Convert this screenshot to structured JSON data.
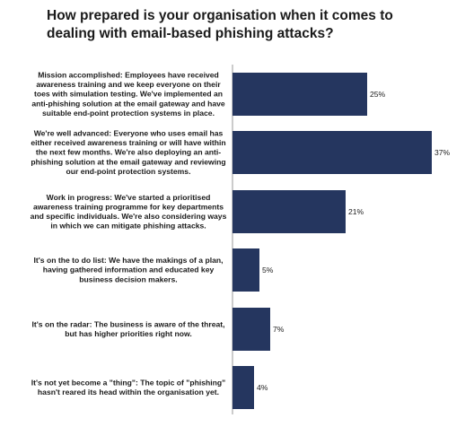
{
  "title": "How prepared is your organisation when it comes to dealing with email-based phishing attacks?",
  "colors": {
    "bar": "#25365f",
    "axis": "#9a9a9a"
  },
  "chart_data": {
    "type": "bar",
    "orientation": "horizontal",
    "title": "How prepared is your organisation when it comes to dealing with email-based phishing attacks?",
    "xlabel": "",
    "ylabel": "",
    "xlim": [
      0,
      37
    ],
    "grid": false,
    "legend": "none",
    "categories": [
      [
        "Mission accomplished: Employees have received",
        "awareness training and we keep everyone on their",
        "toes with simulation testing. We've implemented an",
        "anti-phishing solution at the email gateway and have",
        "suitable end-point protection systems in place."
      ],
      [
        "We're well advanced: Everyone who uses email has",
        "either received awareness training or will have within",
        "the next few months. We're also deploying an anti-",
        "phishing solution at the email gateway and reviewing",
        "our end-point protection systems."
      ],
      [
        "Work in progress: We've started a prioritised",
        "awareness training programme for key departments",
        "and specific individuals. We're also considering ways",
        "in which we can mitigate phishing attacks."
      ],
      [
        "It's on the to do list: We have the makings of a plan,",
        "having gathered information and educated key",
        "business decision makers."
      ],
      [
        "It's on the radar: The business is aware of the threat,",
        "but has higher priorities right now."
      ],
      [
        "It's not yet become a \"thing\": The topic of \"phishing\"",
        "hasn't reared its head within the organisation yet."
      ]
    ],
    "values": [
      25,
      37,
      21,
      5,
      7,
      4
    ],
    "value_labels": [
      "25%",
      "37%",
      "21%",
      "5%",
      "7%",
      "4%"
    ]
  }
}
